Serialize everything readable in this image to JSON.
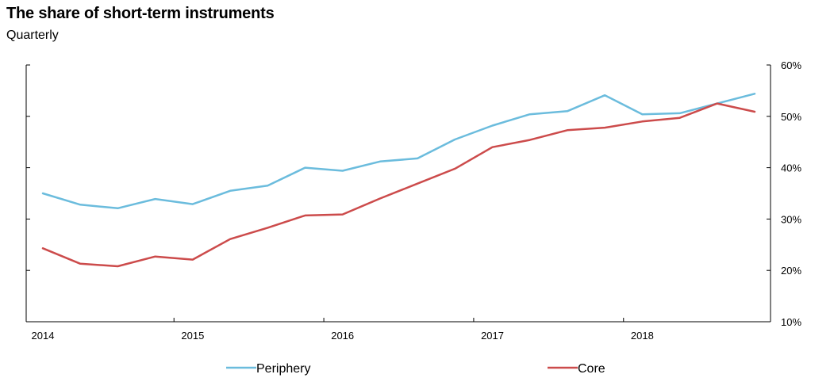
{
  "title": "The share of short-term instruments",
  "subtitle": "Quarterly",
  "chart_data": {
    "type": "line",
    "title": "The share of short-term instruments",
    "subtitle": "Quarterly",
    "xlabel": "",
    "ylabel": "",
    "x": [
      "2014-Q1",
      "2014-Q2",
      "2014-Q3",
      "2014-Q4",
      "2015-Q1",
      "2015-Q2",
      "2015-Q3",
      "2015-Q4",
      "2016-Q1",
      "2016-Q2",
      "2016-Q3",
      "2016-Q4",
      "2017-Q1",
      "2017-Q2",
      "2017-Q3",
      "2017-Q4",
      "2018-Q1",
      "2018-Q2",
      "2018-Q3",
      "2018-Q4"
    ],
    "x_tick_labels": [
      "2014",
      "2015",
      "2016",
      "2017",
      "2018"
    ],
    "y_tick_labels": [
      "10%",
      "20%",
      "30%",
      "40%",
      "50%",
      "60%"
    ],
    "y_ticks": [
      10,
      20,
      30,
      40,
      50,
      60
    ],
    "ylim": [
      10,
      60
    ],
    "y_axis_side": "right",
    "grid": false,
    "legend_position": "bottom",
    "series": [
      {
        "name": "Periphery",
        "color": "#6BBCDD",
        "values": [
          35.0,
          32.8,
          32.1,
          33.9,
          32.9,
          35.5,
          36.5,
          40.0,
          39.4,
          41.2,
          41.8,
          45.5,
          48.2,
          50.4,
          51.0,
          54.1,
          50.4,
          50.6,
          52.5,
          54.4
        ]
      },
      {
        "name": "Core",
        "color": "#CC4B4B",
        "values": [
          24.3,
          21.3,
          20.8,
          22.7,
          22.1,
          26.1,
          28.3,
          30.7,
          30.9,
          34.0,
          36.9,
          39.8,
          44.0,
          45.4,
          47.3,
          47.8,
          49.0,
          49.7,
          52.5,
          50.9
        ]
      }
    ]
  }
}
